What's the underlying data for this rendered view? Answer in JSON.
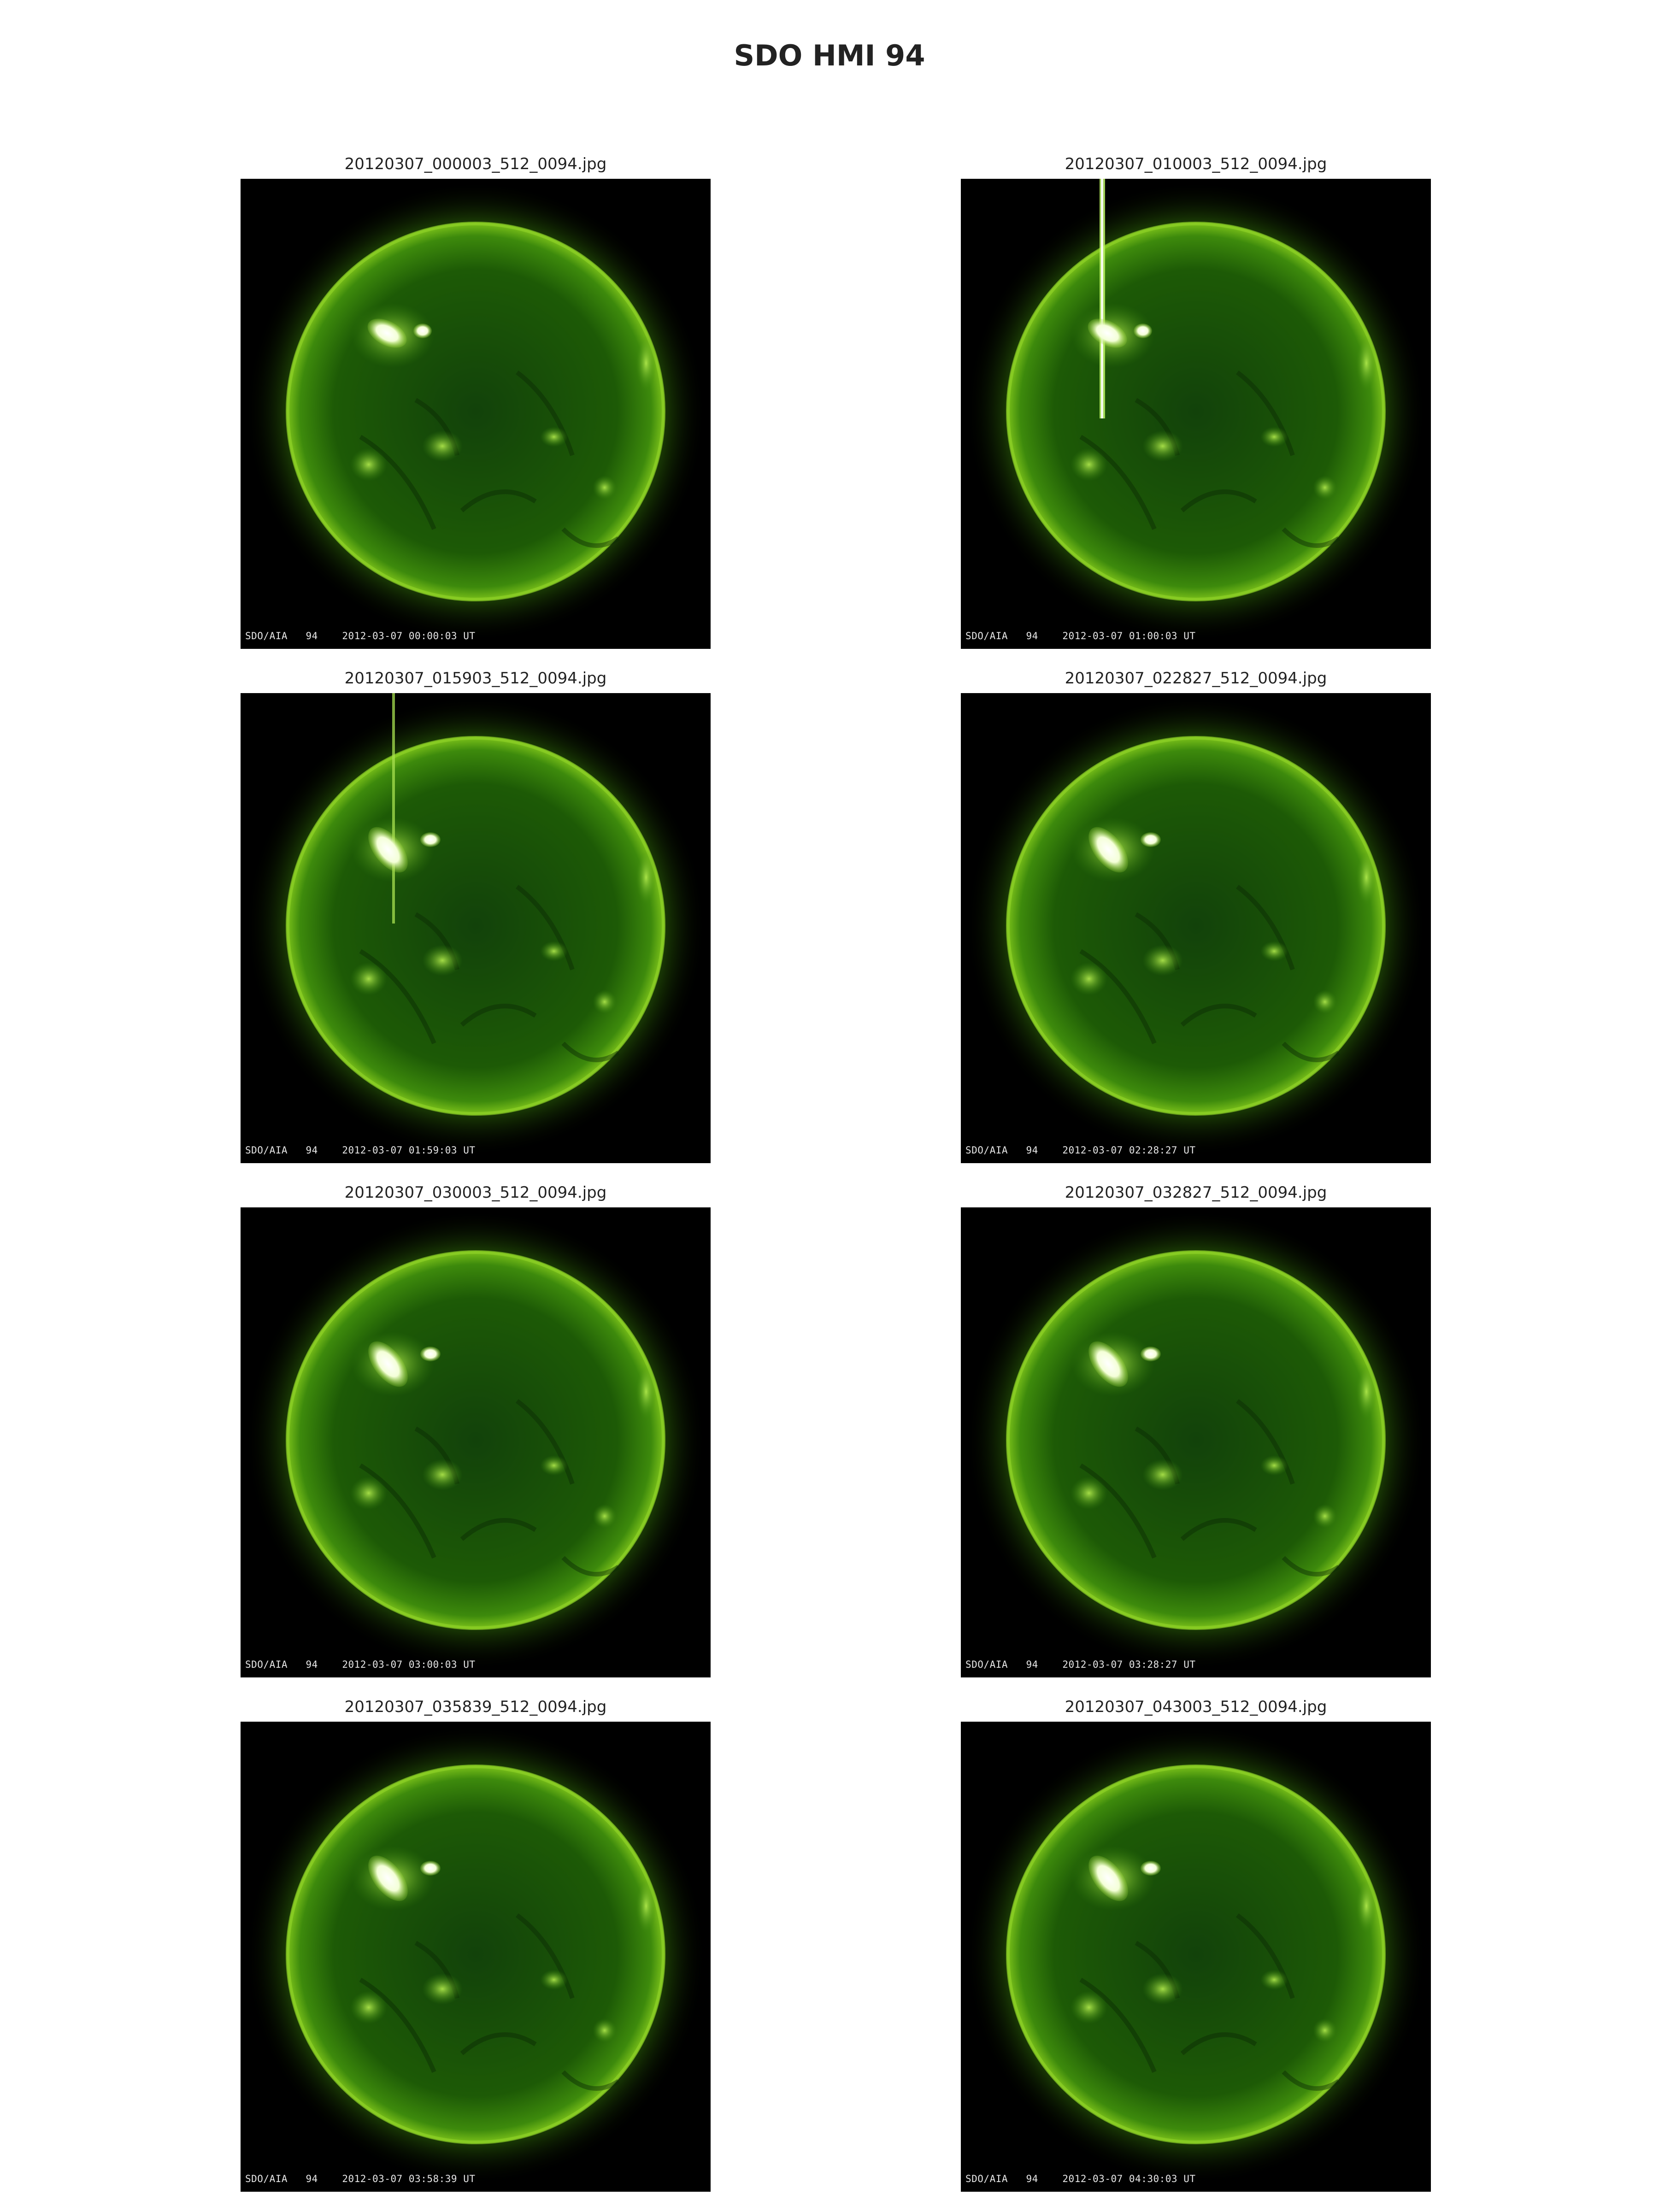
{
  "title": "SDO HMI 94",
  "panels": [
    {
      "filename": "20120307_000003_512_0094.jpg",
      "instrument": "SDO/AIA",
      "wavelength": "94",
      "timestamp": "2012-03-07 00:00:03 UT",
      "flare": "small"
    },
    {
      "filename": "20120307_010003_512_0094.jpg",
      "instrument": "SDO/AIA",
      "wavelength": "94",
      "timestamp": "2012-03-07 01:00:03 UT",
      "flare": "bright-streak"
    },
    {
      "filename": "20120307_015903_512_0094.jpg",
      "instrument": "SDO/AIA",
      "wavelength": "94",
      "timestamp": "2012-03-07 01:59:03 UT",
      "flare": "streak"
    },
    {
      "filename": "20120307_022827_512_0094.jpg",
      "instrument": "SDO/AIA",
      "wavelength": "94",
      "timestamp": "2012-03-07 02:28:27 UT",
      "flare": "loop"
    },
    {
      "filename": "20120307_030003_512_0094.jpg",
      "instrument": "SDO/AIA",
      "wavelength": "94",
      "timestamp": "2012-03-07 03:00:03 UT",
      "flare": "loop"
    },
    {
      "filename": "20120307_032827_512_0094.jpg",
      "instrument": "SDO/AIA",
      "wavelength": "94",
      "timestamp": "2012-03-07 03:28:27 UT",
      "flare": "loop"
    },
    {
      "filename": "20120307_035839_512_0094.jpg",
      "instrument": "SDO/AIA",
      "wavelength": "94",
      "timestamp": "2012-03-07 03:58:39 UT",
      "flare": "loop"
    },
    {
      "filename": "20120307_043003_512_0094.jpg",
      "instrument": "SDO/AIA",
      "wavelength": "94",
      "timestamp": "2012-03-07 04:30:03 UT",
      "flare": "fading"
    }
  ],
  "colors": {
    "disk": "#1d5a06",
    "limb": "#7cc21a",
    "flare": "#ffffff",
    "background": "#000000"
  }
}
